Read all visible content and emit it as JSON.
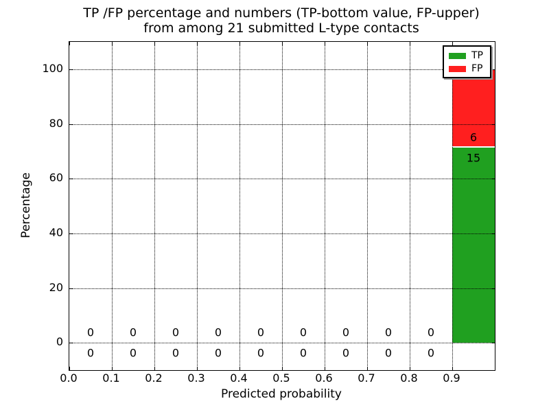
{
  "chart_data": {
    "type": "bar",
    "stacked": true,
    "title_line1": "TP /FP percentage and numbers (TP-bottom value, FP-upper)",
    "title_line2": "from among 21 submitted L-type contacts",
    "xlabel": "Predicted probability",
    "ylabel": "Percentage",
    "xlim": [
      0.0,
      1.0
    ],
    "ylim": [
      -10,
      110
    ],
    "grid": "dotted",
    "x_tick_values": [
      0.0,
      0.1,
      0.2,
      0.3,
      0.4,
      0.5,
      0.6,
      0.7,
      0.8,
      0.9
    ],
    "x_tick_labels": [
      "0.0",
      "0.1",
      "0.2",
      "0.3",
      "0.4",
      "0.5",
      "0.6",
      "0.7",
      "0.8",
      "0.9"
    ],
    "y_tick_values": [
      0,
      20,
      40,
      60,
      80,
      100
    ],
    "y_tick_labels": [
      "0",
      "20",
      "40",
      "60",
      "80",
      "100"
    ],
    "bins": {
      "centers": [
        0.05,
        0.15,
        0.25,
        0.35,
        0.45,
        0.55,
        0.65,
        0.75,
        0.85,
        0.95
      ],
      "width": 0.1
    },
    "series": [
      {
        "name": "TP",
        "color": "#20a020",
        "counts": [
          0,
          0,
          0,
          0,
          0,
          0,
          0,
          0,
          0,
          15
        ],
        "percent": [
          0,
          0,
          0,
          0,
          0,
          0,
          0,
          0,
          0,
          71.4286
        ]
      },
      {
        "name": "FP",
        "color": "#ff1f1f",
        "counts": [
          0,
          0,
          0,
          0,
          0,
          0,
          0,
          0,
          0,
          6
        ],
        "percent": [
          0,
          0,
          0,
          0,
          0,
          0,
          0,
          0,
          0,
          28.5714
        ]
      }
    ],
    "legend": {
      "position": "upper right",
      "entries": [
        {
          "label": "TP",
          "color": "#20a020"
        },
        {
          "label": "FP",
          "color": "#ff1f1f"
        }
      ]
    }
  }
}
